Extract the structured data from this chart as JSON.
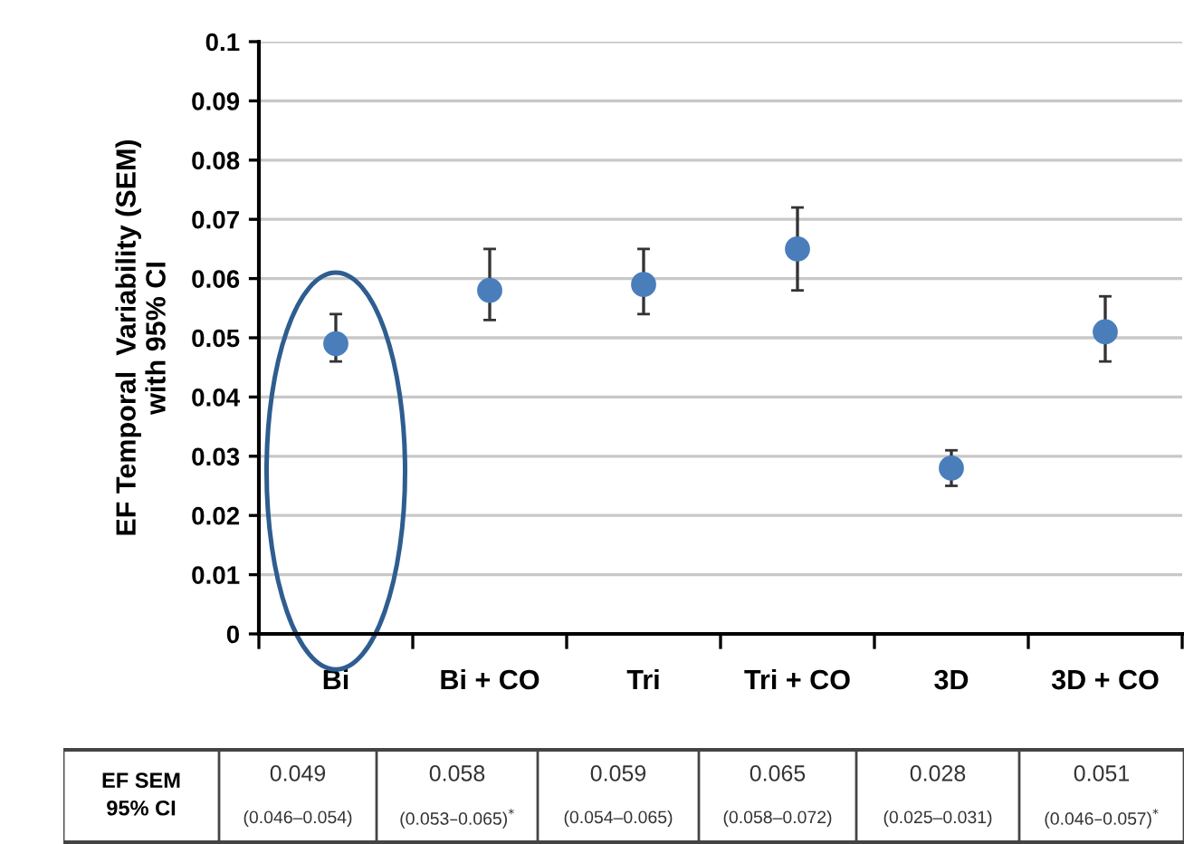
{
  "chart_data": {
    "type": "scatter",
    "ylabel": "EF Temporal  Variability (SEM)\nwith 95% CI",
    "categories": [
      "Bi",
      "Bi + CO",
      "Tri",
      "Tri + CO",
      "3D",
      "3D + CO"
    ],
    "values": [
      0.049,
      0.058,
      0.059,
      0.065,
      0.028,
      0.051
    ],
    "errors": [
      [
        0.046,
        0.054
      ],
      [
        0.053,
        0.065
      ],
      [
        0.054,
        0.065
      ],
      [
        0.058,
        0.072
      ],
      [
        0.025,
        0.031
      ],
      [
        0.046,
        0.057
      ]
    ],
    "value_labels": [
      "0.049\n(0.046–0.054)",
      "0.058\n(0.053–0.065)$^{*}$",
      "0.059\n(0.054–0.065)",
      "0.065\n(0.058–0.072)",
      "0.028\n(0.025–0.031)",
      "0.051\n(0.046–0.057)$^{*}$"
    ],
    "annotations": [
      "EF SEM\n95% CI"
    ],
    "color": "#4a7ebb",
    "marker": "circle",
    "grid": "y",
    "ylim": [
      0,
      0.1
    ],
    "yticks": [
      0,
      0.01,
      0.02,
      0.03,
      0.04,
      0.05,
      0.06,
      0.07,
      0.08,
      0.09,
      0.1
    ]
  }
}
